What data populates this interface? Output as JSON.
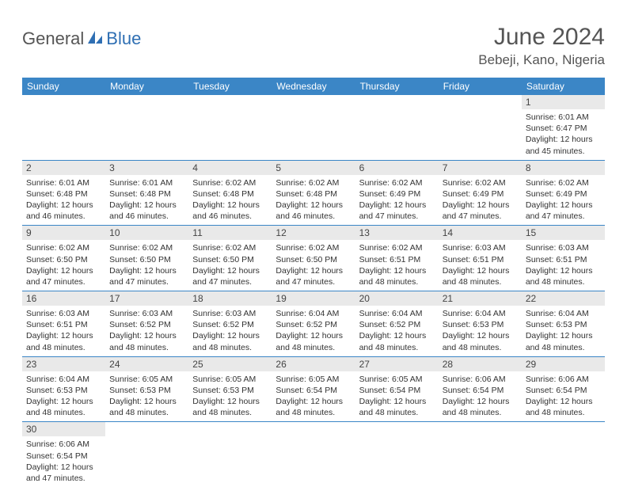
{
  "branding": {
    "part1": "General",
    "part2": "Blue"
  },
  "title": "June 2024",
  "location": "Bebeji, Kano, Nigeria",
  "colors": {
    "header_bg": "#3b86c6",
    "header_fg": "#ffffff",
    "row_divider": "#3b86c6",
    "daynum_bg": "#e9e9e9",
    "brand_gray": "#555555",
    "brand_blue": "#2f6fb3"
  },
  "week_header": [
    "Sunday",
    "Monday",
    "Tuesday",
    "Wednesday",
    "Thursday",
    "Friday",
    "Saturday"
  ],
  "grid": [
    [
      null,
      null,
      null,
      null,
      null,
      null,
      {
        "n": "1",
        "sr": "6:01 AM",
        "ss": "6:47 PM",
        "dl": "12 hours and 45 minutes."
      }
    ],
    [
      {
        "n": "2",
        "sr": "6:01 AM",
        "ss": "6:48 PM",
        "dl": "12 hours and 46 minutes."
      },
      {
        "n": "3",
        "sr": "6:01 AM",
        "ss": "6:48 PM",
        "dl": "12 hours and 46 minutes."
      },
      {
        "n": "4",
        "sr": "6:02 AM",
        "ss": "6:48 PM",
        "dl": "12 hours and 46 minutes."
      },
      {
        "n": "5",
        "sr": "6:02 AM",
        "ss": "6:48 PM",
        "dl": "12 hours and 46 minutes."
      },
      {
        "n": "6",
        "sr": "6:02 AM",
        "ss": "6:49 PM",
        "dl": "12 hours and 47 minutes."
      },
      {
        "n": "7",
        "sr": "6:02 AM",
        "ss": "6:49 PM",
        "dl": "12 hours and 47 minutes."
      },
      {
        "n": "8",
        "sr": "6:02 AM",
        "ss": "6:49 PM",
        "dl": "12 hours and 47 minutes."
      }
    ],
    [
      {
        "n": "9",
        "sr": "6:02 AM",
        "ss": "6:50 PM",
        "dl": "12 hours and 47 minutes."
      },
      {
        "n": "10",
        "sr": "6:02 AM",
        "ss": "6:50 PM",
        "dl": "12 hours and 47 minutes."
      },
      {
        "n": "11",
        "sr": "6:02 AM",
        "ss": "6:50 PM",
        "dl": "12 hours and 47 minutes."
      },
      {
        "n": "12",
        "sr": "6:02 AM",
        "ss": "6:50 PM",
        "dl": "12 hours and 47 minutes."
      },
      {
        "n": "13",
        "sr": "6:02 AM",
        "ss": "6:51 PM",
        "dl": "12 hours and 48 minutes."
      },
      {
        "n": "14",
        "sr": "6:03 AM",
        "ss": "6:51 PM",
        "dl": "12 hours and 48 minutes."
      },
      {
        "n": "15",
        "sr": "6:03 AM",
        "ss": "6:51 PM",
        "dl": "12 hours and 48 minutes."
      }
    ],
    [
      {
        "n": "16",
        "sr": "6:03 AM",
        "ss": "6:51 PM",
        "dl": "12 hours and 48 minutes."
      },
      {
        "n": "17",
        "sr": "6:03 AM",
        "ss": "6:52 PM",
        "dl": "12 hours and 48 minutes."
      },
      {
        "n": "18",
        "sr": "6:03 AM",
        "ss": "6:52 PM",
        "dl": "12 hours and 48 minutes."
      },
      {
        "n": "19",
        "sr": "6:04 AM",
        "ss": "6:52 PM",
        "dl": "12 hours and 48 minutes."
      },
      {
        "n": "20",
        "sr": "6:04 AM",
        "ss": "6:52 PM",
        "dl": "12 hours and 48 minutes."
      },
      {
        "n": "21",
        "sr": "6:04 AM",
        "ss": "6:53 PM",
        "dl": "12 hours and 48 minutes."
      },
      {
        "n": "22",
        "sr": "6:04 AM",
        "ss": "6:53 PM",
        "dl": "12 hours and 48 minutes."
      }
    ],
    [
      {
        "n": "23",
        "sr": "6:04 AM",
        "ss": "6:53 PM",
        "dl": "12 hours and 48 minutes."
      },
      {
        "n": "24",
        "sr": "6:05 AM",
        "ss": "6:53 PM",
        "dl": "12 hours and 48 minutes."
      },
      {
        "n": "25",
        "sr": "6:05 AM",
        "ss": "6:53 PM",
        "dl": "12 hours and 48 minutes."
      },
      {
        "n": "26",
        "sr": "6:05 AM",
        "ss": "6:54 PM",
        "dl": "12 hours and 48 minutes."
      },
      {
        "n": "27",
        "sr": "6:05 AM",
        "ss": "6:54 PM",
        "dl": "12 hours and 48 minutes."
      },
      {
        "n": "28",
        "sr": "6:06 AM",
        "ss": "6:54 PM",
        "dl": "12 hours and 48 minutes."
      },
      {
        "n": "29",
        "sr": "6:06 AM",
        "ss": "6:54 PM",
        "dl": "12 hours and 48 minutes."
      }
    ],
    [
      {
        "n": "30",
        "sr": "6:06 AM",
        "ss": "6:54 PM",
        "dl": "12 hours and 47 minutes."
      },
      null,
      null,
      null,
      null,
      null,
      null
    ]
  ],
  "labels": {
    "sunrise": "Sunrise:",
    "sunset": "Sunset:",
    "daylight": "Daylight:"
  }
}
